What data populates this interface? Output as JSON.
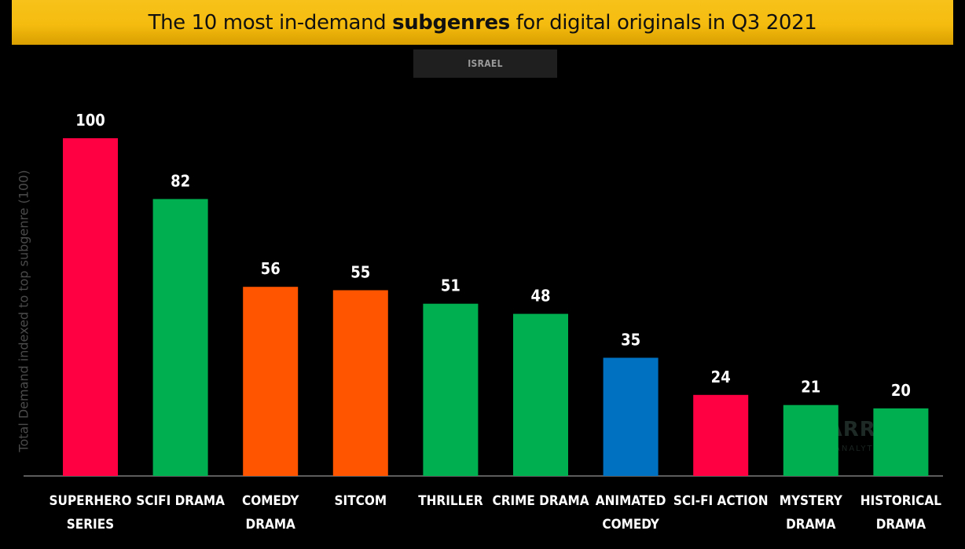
{
  "header": {
    "title_before": "The 10 most in-demand ",
    "title_bold": "subgenres",
    "title_after": " for digital originals in Q3 2021",
    "region": "ISRAEL"
  },
  "watermark": {
    "brand": "PARROT",
    "sub": "ANALYTICS"
  },
  "colors": {
    "red": "#ff0043",
    "green": "#00b050",
    "orange": "#ff5500",
    "blue": "#0070c0",
    "title_bar": "#f5bc0f"
  },
  "chart_data": {
    "type": "bar",
    "title": "The 10 most in-demand subgenres for digital originals in Q3 2021",
    "subtitle": "ISRAEL",
    "ylabel": "Total Demand indexed to top subgenre (100)",
    "xlabel": "",
    "ylim": [
      0,
      100
    ],
    "grid": false,
    "categories": [
      [
        "SUPERHERO",
        "SERIES"
      ],
      [
        "SCIFI DRAMA"
      ],
      [
        "COMEDY",
        "DRAMA"
      ],
      [
        "SITCOM"
      ],
      [
        "THRILLER"
      ],
      [
        "CRIME DRAMA"
      ],
      [
        "ANIMATED",
        "COMEDY"
      ],
      [
        "SCI-FI ACTION"
      ],
      [
        "MYSTERY",
        "DRAMA"
      ],
      [
        "HISTORICAL",
        "DRAMA"
      ]
    ],
    "values": [
      100,
      82,
      56,
      55,
      51,
      48,
      35,
      24,
      21,
      20
    ],
    "bar_colors": [
      "#ff0043",
      "#00b050",
      "#ff5500",
      "#ff5500",
      "#00b050",
      "#00b050",
      "#0070c0",
      "#ff0043",
      "#00b050",
      "#00b050"
    ]
  }
}
